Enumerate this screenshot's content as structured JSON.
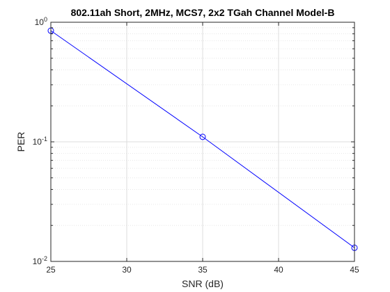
{
  "chart_data": {
    "type": "line",
    "title": "802.11ah Short, 2MHz, MCS7, 2x2 TGah Channel Model-B",
    "xlabel": "SNR (dB)",
    "ylabel": "PER",
    "xlim": [
      25,
      45
    ],
    "ylim": [
      0.01,
      1
    ],
    "yscale": "log",
    "grid": true,
    "minor_grid": true,
    "x_ticks": [
      "25",
      "30",
      "35",
      "40",
      "45"
    ],
    "y_ticks": [
      {
        "base": "10",
        "exp": "-2",
        "value": 0.01
      },
      {
        "base": "10",
        "exp": "-1",
        "value": 0.1
      },
      {
        "base": "10",
        "exp": "0",
        "value": 1
      }
    ],
    "series": [
      {
        "x": [
          25,
          35,
          45
        ],
        "y": [
          0.85,
          0.11,
          0.013
        ],
        "color": "#0000ff",
        "marker": "circle"
      }
    ]
  }
}
